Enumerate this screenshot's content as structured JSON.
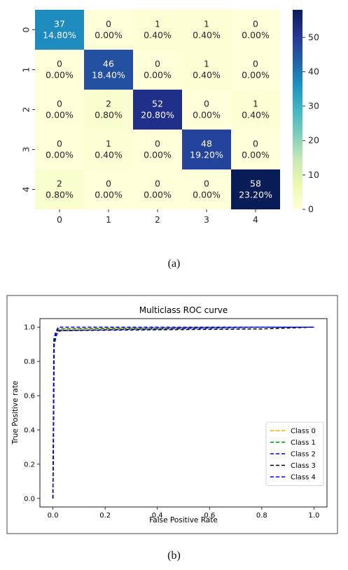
{
  "figure_a": {
    "caption": "(a)"
  },
  "figure_b": {
    "caption": "(b)"
  },
  "chart_data": [
    {
      "type": "heatmap",
      "rows": [
        "0",
        "1",
        "2",
        "3",
        "4"
      ],
      "columns": [
        "0",
        "1",
        "2",
        "3",
        "4"
      ],
      "values": [
        [
          37,
          0,
          1,
          1,
          0
        ],
        [
          0,
          46,
          0,
          1,
          0
        ],
        [
          0,
          2,
          52,
          0,
          1
        ],
        [
          0,
          1,
          0,
          48,
          0
        ],
        [
          2,
          0,
          0,
          0,
          58
        ]
      ],
      "percentages": [
        [
          "14.80%",
          "0.00%",
          "0.40%",
          "0.40%",
          "0.00%"
        ],
        [
          "0.00%",
          "18.40%",
          "0.00%",
          "0.40%",
          "0.00%"
        ],
        [
          "0.00%",
          "0.80%",
          "20.80%",
          "0.00%",
          "0.40%"
        ],
        [
          "0.00%",
          "0.40%",
          "0.00%",
          "19.20%",
          "0.00%"
        ],
        [
          "0.80%",
          "0.00%",
          "0.00%",
          "0.00%",
          "23.20%"
        ]
      ],
      "colormap": "YlGnBu",
      "colorbar": {
        "range": [
          0,
          58
        ],
        "ticks": [
          0,
          10,
          20,
          30,
          40,
          50
        ]
      }
    },
    {
      "type": "line",
      "title": "Multiclass ROC curve",
      "xlabel": "False Positive Rate",
      "ylabel": "True Positive rate",
      "xlim": [
        0,
        1
      ],
      "ylim": [
        0,
        1
      ],
      "xticks": [
        "0.0",
        "0.2",
        "0.4",
        "0.6",
        "0.8",
        "1.0"
      ],
      "yticks": [
        "0.0",
        "0.2",
        "0.4",
        "0.6",
        "0.8",
        "1.0"
      ],
      "legend_position": "lower right",
      "line_style": "dashed",
      "series": [
        {
          "name": "Class 0",
          "color": "#ffa500",
          "x": [
            0,
            0.005,
            0.01,
            0.02,
            0.03,
            0.6,
            1.0
          ],
          "y": [
            0,
            0.9,
            0.95,
            0.98,
            0.99,
            1.0,
            1.0
          ]
        },
        {
          "name": "Class 1",
          "color": "#008000",
          "x": [
            0,
            0.003,
            0.01,
            0.02,
            0.8,
            1.0
          ],
          "y": [
            0,
            0.93,
            0.97,
            0.99,
            1.0,
            1.0
          ]
        },
        {
          "name": "Class 2",
          "color": "#0000ff",
          "x": [
            0,
            0.005,
            0.015,
            0.03,
            0.8,
            1.0
          ],
          "y": [
            0,
            0.9,
            0.96,
            0.98,
            1.0,
            1.0
          ]
        },
        {
          "name": "Class 3",
          "color": "#000000",
          "x": [
            0,
            0.004,
            0.012,
            0.02,
            0.8,
            1.0
          ],
          "y": [
            0,
            0.92,
            0.97,
            0.98,
            0.99,
            1.0
          ]
        },
        {
          "name": "Class 4",
          "color": "#0000ff",
          "x": [
            0,
            0.004,
            0.01,
            0.02,
            0.8,
            1.0
          ],
          "y": [
            0,
            0.92,
            0.97,
            1.0,
            1.0,
            1.0
          ]
        }
      ]
    }
  ]
}
